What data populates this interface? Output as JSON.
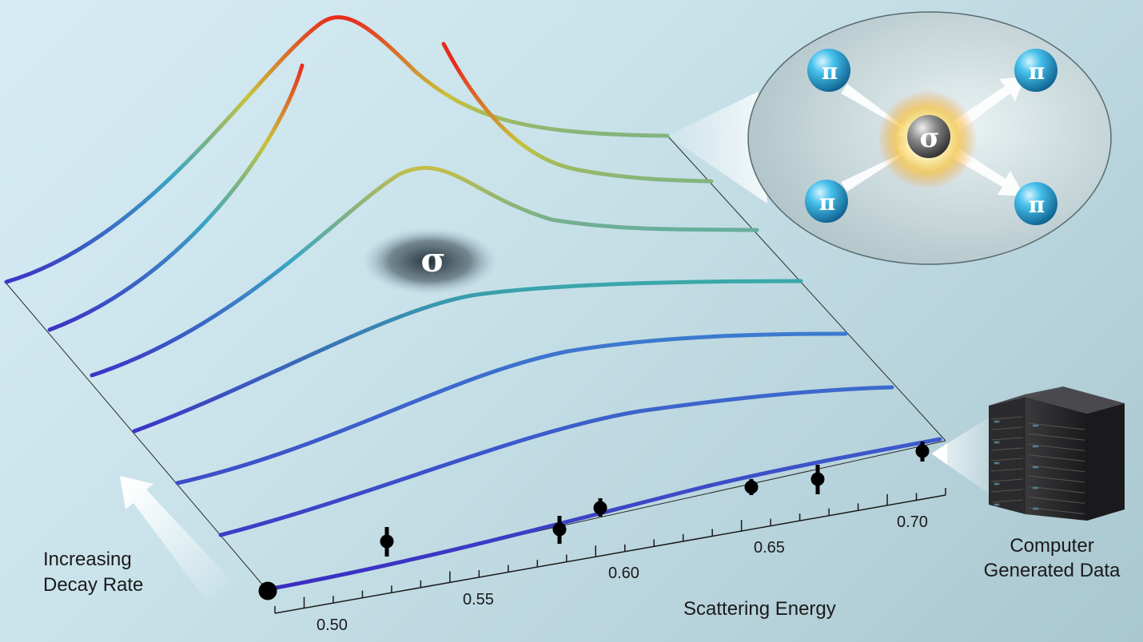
{
  "axis": {
    "label": "Scattering Energy",
    "ticks": [
      "0.50",
      "0.55",
      "0.60",
      "0.65",
      "0.70"
    ]
  },
  "side_label": {
    "line1": "Increasing",
    "line2": "Decay Rate"
  },
  "server_label": {
    "line1": "Computer",
    "line2": "Generated Data"
  },
  "sigma_symbol": "σ",
  "pion_symbol": "π",
  "colors": {
    "curve_low": "#3a38c8",
    "curve_mid": "#3aa8c0",
    "curve_high": "#e8301c",
    "pion": "#29a8da",
    "sigma": "#6a6a6a"
  }
}
